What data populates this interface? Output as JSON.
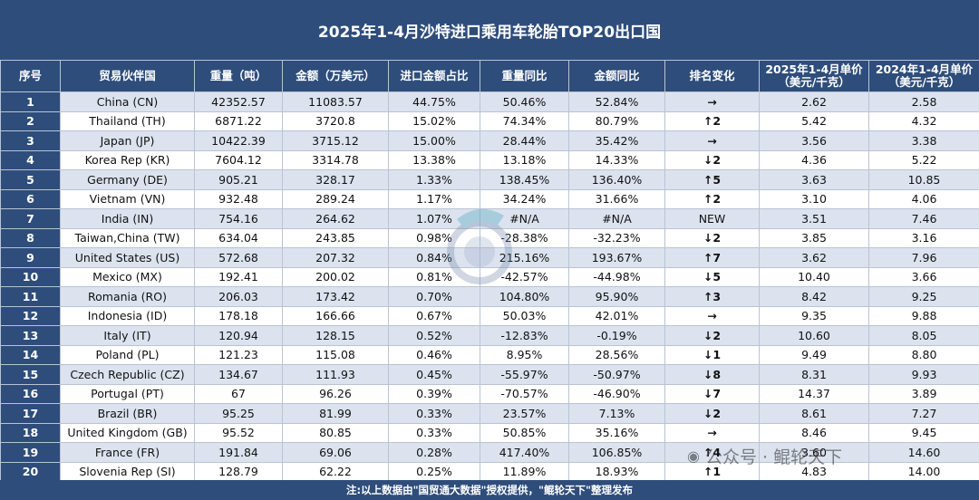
{
  "title": "2025年1-4月沙特进口乘用车轮胎TOP20出口国",
  "headers": {
    "idx": "序号",
    "partner": "贸易伙伴国",
    "weight": "重量（吨）",
    "amount": "金额（万美元）",
    "share": "进口金额占比",
    "weight_yoy": "重量同比",
    "amount_yoy": "金额同比",
    "rank_change": "排名变化",
    "price_2025": "2025年1-4月单价（美元/千克）",
    "price_2024": "2024年1-4月单价（美元/千克）"
  },
  "rows": [
    {
      "idx": "1",
      "partner": "China (CN)",
      "weight": "42352.57",
      "amount": "11083.57",
      "share": "44.75%",
      "weight_yoy": "50.46%",
      "amount_yoy": "52.84%",
      "rank": "→",
      "rank_type": "flat",
      "p25": "2.62",
      "p24": "2.58"
    },
    {
      "idx": "2",
      "partner": "Thailand (TH)",
      "weight": "6871.22",
      "amount": "3720.8",
      "share": "15.02%",
      "weight_yoy": "74.34%",
      "amount_yoy": "80.79%",
      "rank": "↑2",
      "rank_type": "up",
      "p25": "5.42",
      "p24": "4.32"
    },
    {
      "idx": "3",
      "partner": "Japan (JP)",
      "weight": "10422.39",
      "amount": "3715.12",
      "share": "15.00%",
      "weight_yoy": "28.44%",
      "amount_yoy": "35.42%",
      "rank": "→",
      "rank_type": "flat",
      "p25": "3.56",
      "p24": "3.38"
    },
    {
      "idx": "4",
      "partner": "Korea Rep (KR)",
      "weight": "7604.12",
      "amount": "3314.78",
      "share": "13.38%",
      "weight_yoy": "13.18%",
      "amount_yoy": "14.33%",
      "rank": "↓2",
      "rank_type": "down",
      "p25": "4.36",
      "p24": "5.22"
    },
    {
      "idx": "5",
      "partner": "Germany (DE)",
      "weight": "905.21",
      "amount": "328.17",
      "share": "1.33%",
      "weight_yoy": "138.45%",
      "amount_yoy": "136.40%",
      "rank": "↑5",
      "rank_type": "up",
      "p25": "3.63",
      "p24": "10.85"
    },
    {
      "idx": "6",
      "partner": "Vietnam (VN)",
      "weight": "932.48",
      "amount": "289.24",
      "share": "1.17%",
      "weight_yoy": "34.24%",
      "amount_yoy": "31.66%",
      "rank": "↑2",
      "rank_type": "up",
      "p25": "3.10",
      "p24": "4.06"
    },
    {
      "idx": "7",
      "partner": "India (IN)",
      "weight": "754.16",
      "amount": "264.62",
      "share": "1.07%",
      "weight_yoy": "#N/A",
      "amount_yoy": "#N/A",
      "rank": "NEW",
      "rank_type": "new",
      "p25": "3.51",
      "p24": "7.46"
    },
    {
      "idx": "8",
      "partner": "Taiwan,China (TW)",
      "weight": "634.04",
      "amount": "243.85",
      "share": "0.98%",
      "weight_yoy": "-28.38%",
      "amount_yoy": "-32.23%",
      "rank": "↓2",
      "rank_type": "down",
      "p25": "3.85",
      "p24": "3.16"
    },
    {
      "idx": "9",
      "partner": "United States (US)",
      "weight": "572.68",
      "amount": "207.32",
      "share": "0.84%",
      "weight_yoy": "215.16%",
      "amount_yoy": "193.67%",
      "rank": "↑7",
      "rank_type": "up",
      "p25": "3.62",
      "p24": "7.96"
    },
    {
      "idx": "10",
      "partner": "Mexico (MX)",
      "weight": "192.41",
      "amount": "200.02",
      "share": "0.81%",
      "weight_yoy": "-42.57%",
      "amount_yoy": "-44.98%",
      "rank": "↓5",
      "rank_type": "down",
      "p25": "10.40",
      "p24": "3.66"
    },
    {
      "idx": "11",
      "partner": "Romania (RO)",
      "weight": "206.03",
      "amount": "173.42",
      "share": "0.70%",
      "weight_yoy": "104.80%",
      "amount_yoy": "95.90%",
      "rank": "↑3",
      "rank_type": "up",
      "p25": "8.42",
      "p24": "9.25"
    },
    {
      "idx": "12",
      "partner": "Indonesia (ID)",
      "weight": "178.18",
      "amount": "166.66",
      "share": "0.67%",
      "weight_yoy": "50.03%",
      "amount_yoy": "42.01%",
      "rank": "→",
      "rank_type": "flat",
      "p25": "9.35",
      "p24": "9.88"
    },
    {
      "idx": "13",
      "partner": "Italy (IT)",
      "weight": "120.94",
      "amount": "128.15",
      "share": "0.52%",
      "weight_yoy": "-12.83%",
      "amount_yoy": "-0.19%",
      "rank": "↓2",
      "rank_type": "down",
      "p25": "10.60",
      "p24": "8.05"
    },
    {
      "idx": "14",
      "partner": "Poland (PL)",
      "weight": "121.23",
      "amount": "115.08",
      "share": "0.46%",
      "weight_yoy": "8.95%",
      "amount_yoy": "28.56%",
      "rank": "↓1",
      "rank_type": "down",
      "p25": "9.49",
      "p24": "8.80"
    },
    {
      "idx": "15",
      "partner": "Czech Republic (CZ)",
      "weight": "134.67",
      "amount": "111.93",
      "share": "0.45%",
      "weight_yoy": "-55.97%",
      "amount_yoy": "-50.97%",
      "rank": "↓8",
      "rank_type": "down",
      "p25": "8.31",
      "p24": "9.93"
    },
    {
      "idx": "16",
      "partner": "Portugal (PT)",
      "weight": "67",
      "amount": "96.26",
      "share": "0.39%",
      "weight_yoy": "-70.57%",
      "amount_yoy": "-46.90%",
      "rank": "↓7",
      "rank_type": "down",
      "p25": "14.37",
      "p24": "3.89"
    },
    {
      "idx": "17",
      "partner": "Brazil (BR)",
      "weight": "95.25",
      "amount": "81.99",
      "share": "0.33%",
      "weight_yoy": "23.57%",
      "amount_yoy": "7.13%",
      "rank": "↓2",
      "rank_type": "down",
      "p25": "8.61",
      "p24": "7.27"
    },
    {
      "idx": "18",
      "partner": "United Kingdom (GB)",
      "weight": "95.52",
      "amount": "80.85",
      "share": "0.33%",
      "weight_yoy": "50.85%",
      "amount_yoy": "35.16%",
      "rank": "→",
      "rank_type": "flat",
      "p25": "8.46",
      "p24": "9.45"
    },
    {
      "idx": "19",
      "partner": "France (FR)",
      "weight": "191.84",
      "amount": "69.06",
      "share": "0.28%",
      "weight_yoy": "417.40%",
      "amount_yoy": "106.85%",
      "rank": "↑4",
      "rank_type": "up",
      "p25": "3.60",
      "p24": "14.60"
    },
    {
      "idx": "20",
      "partner": "Slovenia Rep (SI)",
      "weight": "128.79",
      "amount": "62.22",
      "share": "0.25%",
      "weight_yoy": "11.89%",
      "amount_yoy": "18.93%",
      "rank": "↑1",
      "rank_type": "up",
      "p25": "4.83",
      "p24": "14.00"
    }
  ],
  "footer": "注:以上数据由\"国贸通大数据\"授权提供，\"鲲轮天下\"整理发布",
  "watermark_text": "公众号 · 鲲轮天下",
  "colors": {
    "header_bg": "#2e4d7b",
    "row_alt": "#dce3ef",
    "rank_up": "#e0151c",
    "rank_down": "#1e9e3a",
    "rank_flat": "#2a79c9"
  }
}
